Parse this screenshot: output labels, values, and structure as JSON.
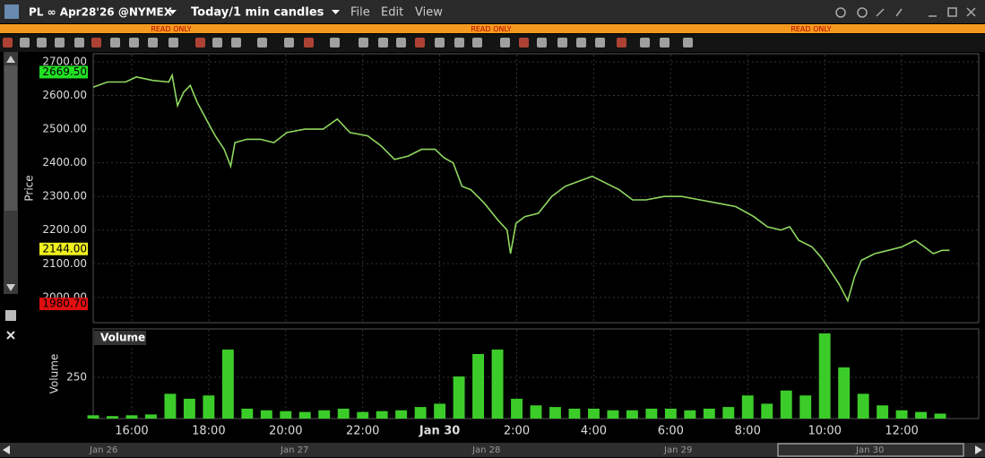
{
  "window": {
    "title": "PL ∞ Apr28'26 @NYMEX",
    "timeframe": "Today/1 min candles",
    "menu": [
      "File",
      "Edit",
      "View"
    ],
    "read_only": [
      "READ ONLY",
      "READ ONLY",
      "READ ONLY"
    ]
  },
  "navigator": {
    "dates": [
      "Jan 26",
      "Jan 27",
      "Jan 28",
      "Jan 29",
      "Jan 30"
    ]
  },
  "chart_data": [
    {
      "type": "line",
      "y_label": "Price",
      "color": "#8fd860",
      "x": [
        15.0,
        15.37,
        15.84,
        16.12,
        16.54,
        16.96,
        17.05,
        17.19,
        17.35,
        17.52,
        17.7,
        17.98,
        18.17,
        18.4,
        18.57,
        18.68,
        18.99,
        19.34,
        19.69,
        20.03,
        20.5,
        20.97,
        21.34,
        21.67,
        22.13,
        22.48,
        22.83,
        23.18,
        23.53,
        23.88,
        24.11,
        24.35,
        24.58,
        24.81,
        25.16,
        25.51,
        25.75,
        25.84,
        25.98,
        26.21,
        26.56,
        26.91,
        27.26,
        27.61,
        27.96,
        28.31,
        28.66,
        29.01,
        29.36,
        29.83,
        30.29,
        30.76,
        31.22,
        31.69,
        32.16,
        32.51,
        32.86,
        33.09,
        33.32,
        33.67,
        33.9,
        34.14,
        34.37,
        34.6,
        34.77,
        34.95,
        35.3,
        35.65,
        36.0,
        36.35,
        36.59,
        36.82,
        37.05,
        37.24
      ],
      "values": [
        2625,
        2640,
        2640,
        2655,
        2645,
        2640,
        2660,
        2570,
        2610,
        2630,
        2580,
        2520,
        2480,
        2440,
        2390,
        2460,
        2470,
        2470,
        2460,
        2490,
        2500,
        2500,
        2530,
        2490,
        2480,
        2450,
        2410,
        2420,
        2440,
        2440,
        2415,
        2400,
        2330,
        2320,
        2280,
        2230,
        2200,
        2130,
        2220,
        2240,
        2250,
        2300,
        2330,
        2345,
        2360,
        2340,
        2320,
        2290,
        2290,
        2300,
        2300,
        2290,
        2280,
        2270,
        2240,
        2210,
        2200,
        2210,
        2170,
        2150,
        2120,
        2080,
        2040,
        1990,
        2060,
        2110,
        2130,
        2140,
        2150,
        2170,
        2150,
        2130,
        2140,
        2140
      ],
      "xlim": [
        15,
        38
      ],
      "ylim": [
        1925,
        2724
      ],
      "xticks": [
        {
          "value": 16,
          "label": "16:00"
        },
        {
          "value": 18,
          "label": "18:00"
        },
        {
          "value": 20,
          "label": "20:00"
        },
        {
          "value": 22,
          "label": "22:00"
        },
        {
          "value": 24,
          "label": "Jan 30"
        },
        {
          "value": 26,
          "label": "2:00"
        },
        {
          "value": 28,
          "label": "4:00"
        },
        {
          "value": 30,
          "label": "6:00"
        },
        {
          "value": 32,
          "label": "8:00"
        },
        {
          "value": 34,
          "label": "10:00"
        },
        {
          "value": 36,
          "label": "12:00"
        }
      ],
      "yticks": [
        {
          "value": 2000,
          "label": "2000.00"
        },
        {
          "value": 2100,
          "label": "2100.00"
        },
        {
          "value": 2200,
          "label": "2200.00"
        },
        {
          "value": 2300,
          "label": "2300.00"
        },
        {
          "value": 2400,
          "label": "2400.00"
        },
        {
          "value": 2500,
          "label": "2500.00"
        },
        {
          "value": 2600,
          "label": "2600.00"
        },
        {
          "value": 2700,
          "label": "2700.00"
        }
      ],
      "markers": [
        {
          "value": 2669.5,
          "label": "2669.50",
          "color": "#22e022"
        },
        {
          "value": 2144,
          "label": "2144.00",
          "color": "#f0f020"
        },
        {
          "value": 1980.7,
          "label": "1980.70",
          "color": "#e01010"
        }
      ],
      "grid": true
    },
    {
      "type": "bar",
      "title": "Volume",
      "y_label": "Volume",
      "color": "#3ccc2a",
      "x": [
        15,
        15.5,
        16,
        16.5,
        17,
        17.5,
        18,
        18.5,
        19,
        19.5,
        20,
        20.5,
        21,
        21.5,
        22,
        22.5,
        23,
        23.5,
        24,
        24.5,
        25,
        25.5,
        26,
        26.5,
        27,
        27.5,
        28,
        28.5,
        29,
        29.5,
        30,
        30.5,
        31,
        31.5,
        32,
        32.5,
        33,
        33.5,
        34,
        34.5,
        35,
        35.5,
        36,
        36.5,
        37
      ],
      "values": [
        20,
        15,
        20,
        25,
        150,
        120,
        140,
        418,
        60,
        50,
        45,
        40,
        50,
        60,
        40,
        45,
        50,
        70,
        90,
        255,
        391,
        418,
        120,
        80,
        70,
        60,
        60,
        50,
        50,
        60,
        60,
        50,
        60,
        70,
        140,
        90,
        170,
        140,
        516,
        310,
        150,
        80,
        50,
        40,
        30
      ],
      "xlim": [
        15,
        38
      ],
      "ylim": [
        0,
        543
      ],
      "yticks": [
        250
      ],
      "grid": true
    }
  ]
}
